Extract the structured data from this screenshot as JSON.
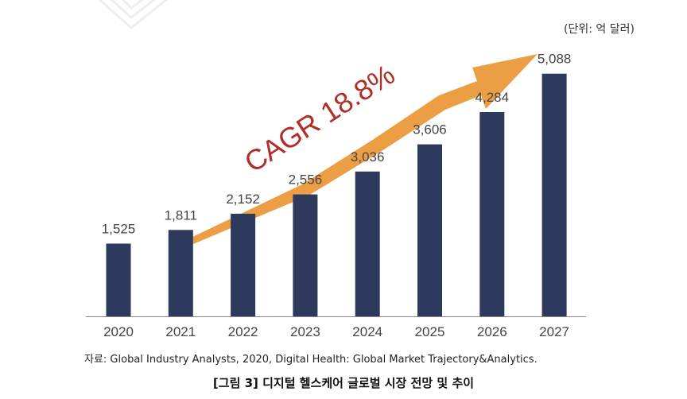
{
  "unit_label": "(단위: 억 달러)",
  "source": "자료: Global Industry Analysts, 2020, Digital Health: Global Market Trajectory&Analytics.",
  "caption": "[그림 3] 디지털 헬스케어 글로벌 시장 전망 및 추이",
  "colors": {
    "bar": "#2d3a5e",
    "arrow": "#ec9e45",
    "annotation": "#b02e2a",
    "axis": "#888888",
    "text": "#444444"
  },
  "chart_data": {
    "type": "bar",
    "title": "",
    "xlabel": "",
    "ylabel": "",
    "categories": [
      "2020",
      "2021",
      "2022",
      "2023",
      "2024",
      "2025",
      "2026",
      "2027"
    ],
    "values": [
      1525,
      1811,
      2152,
      2556,
      3036,
      3606,
      4284,
      5088
    ],
    "value_labels": [
      "1,525",
      "1,811",
      "2,152",
      "2,556",
      "3,036",
      "3,606",
      "4,284",
      "5,088"
    ],
    "ylim": [
      0,
      6000
    ],
    "grid": false,
    "annotation": "CAGR 18.8%",
    "unit": "억 달러"
  }
}
